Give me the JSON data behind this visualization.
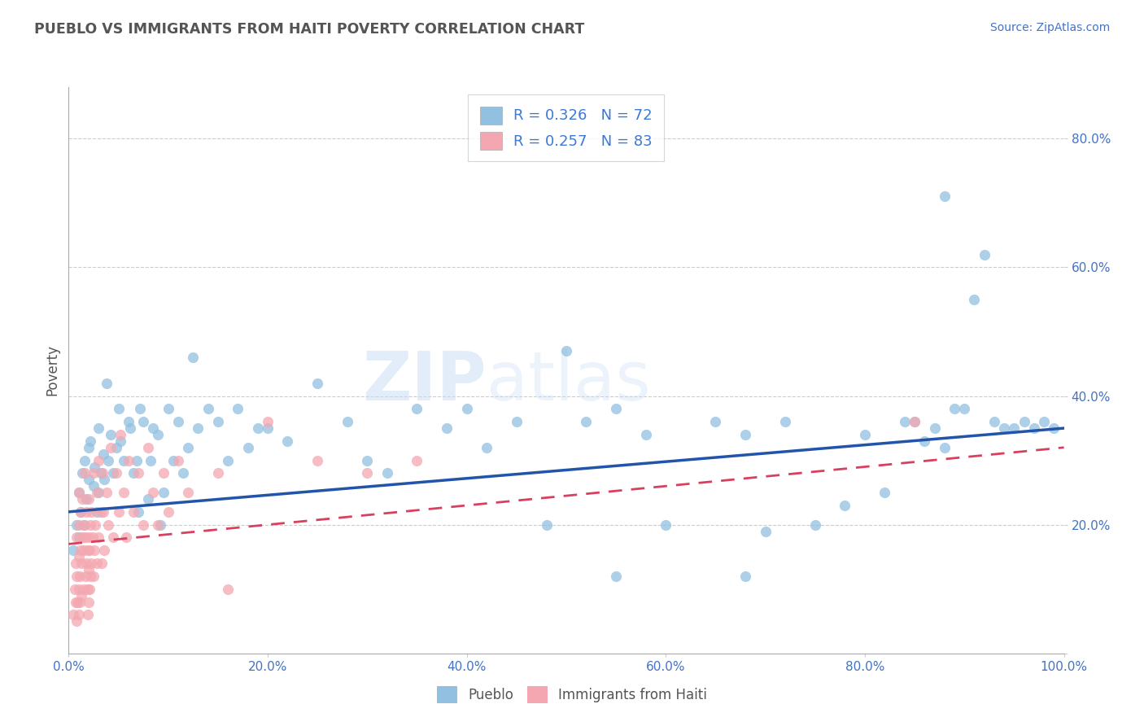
{
  "title": "PUEBLO VS IMMIGRANTS FROM HAITI POVERTY CORRELATION CHART",
  "source_text": "Source: ZipAtlas.com",
  "ylabel": "Poverty",
  "xlim": [
    0.0,
    1.0
  ],
  "ylim": [
    0.0,
    0.88
  ],
  "ytick_values": [
    0.0,
    0.2,
    0.4,
    0.6,
    0.8
  ],
  "xtick_values": [
    0.0,
    0.2,
    0.4,
    0.6,
    0.8,
    1.0
  ],
  "pueblo_color": "#92c0e0",
  "haiti_color": "#f4a7b0",
  "pueblo_line_color": "#2255aa",
  "haiti_line_color": "#d94060",
  "background_color": "#ffffff",
  "grid_color": "#cccccc",
  "title_color": "#666666",
  "watermark_color": "#ddeeff",
  "pueblo_scatter": [
    [
      0.005,
      0.16
    ],
    [
      0.008,
      0.2
    ],
    [
      0.01,
      0.18
    ],
    [
      0.01,
      0.25
    ],
    [
      0.012,
      0.22
    ],
    [
      0.014,
      0.28
    ],
    [
      0.015,
      0.2
    ],
    [
      0.016,
      0.3
    ],
    [
      0.018,
      0.24
    ],
    [
      0.02,
      0.27
    ],
    [
      0.02,
      0.32
    ],
    [
      0.022,
      0.33
    ],
    [
      0.025,
      0.26
    ],
    [
      0.026,
      0.29
    ],
    [
      0.028,
      0.22
    ],
    [
      0.03,
      0.35
    ],
    [
      0.03,
      0.25
    ],
    [
      0.032,
      0.28
    ],
    [
      0.035,
      0.31
    ],
    [
      0.036,
      0.27
    ],
    [
      0.038,
      0.42
    ],
    [
      0.04,
      0.3
    ],
    [
      0.042,
      0.34
    ],
    [
      0.045,
      0.28
    ],
    [
      0.048,
      0.32
    ],
    [
      0.05,
      0.38
    ],
    [
      0.052,
      0.33
    ],
    [
      0.055,
      0.3
    ],
    [
      0.06,
      0.36
    ],
    [
      0.062,
      0.35
    ],
    [
      0.065,
      0.28
    ],
    [
      0.068,
      0.3
    ],
    [
      0.07,
      0.22
    ],
    [
      0.072,
      0.38
    ],
    [
      0.075,
      0.36
    ],
    [
      0.08,
      0.24
    ],
    [
      0.082,
      0.3
    ],
    [
      0.085,
      0.35
    ],
    [
      0.09,
      0.34
    ],
    [
      0.092,
      0.2
    ],
    [
      0.095,
      0.25
    ],
    [
      0.1,
      0.38
    ],
    [
      0.105,
      0.3
    ],
    [
      0.11,
      0.36
    ],
    [
      0.115,
      0.28
    ],
    [
      0.12,
      0.32
    ],
    [
      0.125,
      0.46
    ],
    [
      0.13,
      0.35
    ],
    [
      0.14,
      0.38
    ],
    [
      0.15,
      0.36
    ],
    [
      0.16,
      0.3
    ],
    [
      0.17,
      0.38
    ],
    [
      0.18,
      0.32
    ],
    [
      0.19,
      0.35
    ],
    [
      0.2,
      0.35
    ],
    [
      0.22,
      0.33
    ],
    [
      0.25,
      0.42
    ],
    [
      0.28,
      0.36
    ],
    [
      0.3,
      0.3
    ],
    [
      0.32,
      0.28
    ],
    [
      0.35,
      0.38
    ],
    [
      0.38,
      0.35
    ],
    [
      0.4,
      0.38
    ],
    [
      0.42,
      0.32
    ],
    [
      0.45,
      0.36
    ],
    [
      0.48,
      0.2
    ],
    [
      0.5,
      0.47
    ],
    [
      0.52,
      0.36
    ],
    [
      0.55,
      0.38
    ],
    [
      0.58,
      0.34
    ],
    [
      0.6,
      0.2
    ],
    [
      0.65,
      0.36
    ],
    [
      0.68,
      0.34
    ],
    [
      0.7,
      0.19
    ],
    [
      0.72,
      0.36
    ],
    [
      0.75,
      0.2
    ],
    [
      0.78,
      0.23
    ],
    [
      0.8,
      0.34
    ],
    [
      0.82,
      0.25
    ],
    [
      0.84,
      0.36
    ],
    [
      0.85,
      0.36
    ],
    [
      0.86,
      0.33
    ],
    [
      0.87,
      0.35
    ],
    [
      0.88,
      0.32
    ],
    [
      0.89,
      0.38
    ],
    [
      0.9,
      0.38
    ],
    [
      0.91,
      0.55
    ],
    [
      0.92,
      0.62
    ],
    [
      0.93,
      0.36
    ],
    [
      0.94,
      0.35
    ],
    [
      0.95,
      0.35
    ],
    [
      0.96,
      0.36
    ],
    [
      0.97,
      0.35
    ],
    [
      0.98,
      0.36
    ],
    [
      0.99,
      0.35
    ],
    [
      0.88,
      0.71
    ],
    [
      0.55,
      0.12
    ],
    [
      0.68,
      0.12
    ]
  ],
  "haiti_scatter": [
    [
      0.005,
      0.06
    ],
    [
      0.006,
      0.1
    ],
    [
      0.007,
      0.08
    ],
    [
      0.007,
      0.14
    ],
    [
      0.008,
      0.05
    ],
    [
      0.008,
      0.12
    ],
    [
      0.008,
      0.18
    ],
    [
      0.009,
      0.08
    ],
    [
      0.01,
      0.06
    ],
    [
      0.01,
      0.1
    ],
    [
      0.01,
      0.15
    ],
    [
      0.01,
      0.2
    ],
    [
      0.01,
      0.25
    ],
    [
      0.011,
      0.08
    ],
    [
      0.011,
      0.12
    ],
    [
      0.012,
      0.16
    ],
    [
      0.012,
      0.22
    ],
    [
      0.013,
      0.09
    ],
    [
      0.013,
      0.14
    ],
    [
      0.014,
      0.18
    ],
    [
      0.014,
      0.24
    ],
    [
      0.015,
      0.1
    ],
    [
      0.015,
      0.16
    ],
    [
      0.016,
      0.2
    ],
    [
      0.016,
      0.28
    ],
    [
      0.017,
      0.12
    ],
    [
      0.017,
      0.18
    ],
    [
      0.018,
      0.14
    ],
    [
      0.018,
      0.22
    ],
    [
      0.019,
      0.16
    ],
    [
      0.019,
      0.1
    ],
    [
      0.019,
      0.06
    ],
    [
      0.02,
      0.08
    ],
    [
      0.02,
      0.13
    ],
    [
      0.02,
      0.18
    ],
    [
      0.02,
      0.24
    ],
    [
      0.021,
      0.1
    ],
    [
      0.021,
      0.16
    ],
    [
      0.022,
      0.12
    ],
    [
      0.022,
      0.2
    ],
    [
      0.023,
      0.14
    ],
    [
      0.023,
      0.22
    ],
    [
      0.024,
      0.18
    ],
    [
      0.025,
      0.12
    ],
    [
      0.025,
      0.28
    ],
    [
      0.026,
      0.16
    ],
    [
      0.027,
      0.2
    ],
    [
      0.028,
      0.14
    ],
    [
      0.028,
      0.25
    ],
    [
      0.03,
      0.18
    ],
    [
      0.03,
      0.3
    ],
    [
      0.032,
      0.22
    ],
    [
      0.033,
      0.14
    ],
    [
      0.034,
      0.28
    ],
    [
      0.035,
      0.22
    ],
    [
      0.036,
      0.16
    ],
    [
      0.038,
      0.25
    ],
    [
      0.04,
      0.2
    ],
    [
      0.042,
      0.32
    ],
    [
      0.045,
      0.18
    ],
    [
      0.048,
      0.28
    ],
    [
      0.05,
      0.22
    ],
    [
      0.052,
      0.34
    ],
    [
      0.055,
      0.25
    ],
    [
      0.058,
      0.18
    ],
    [
      0.06,
      0.3
    ],
    [
      0.065,
      0.22
    ],
    [
      0.07,
      0.28
    ],
    [
      0.075,
      0.2
    ],
    [
      0.08,
      0.32
    ],
    [
      0.085,
      0.25
    ],
    [
      0.09,
      0.2
    ],
    [
      0.095,
      0.28
    ],
    [
      0.1,
      0.22
    ],
    [
      0.11,
      0.3
    ],
    [
      0.12,
      0.25
    ],
    [
      0.15,
      0.28
    ],
    [
      0.16,
      0.1
    ],
    [
      0.2,
      0.36
    ],
    [
      0.25,
      0.3
    ],
    [
      0.3,
      0.28
    ],
    [
      0.35,
      0.3
    ],
    [
      0.85,
      0.36
    ]
  ]
}
